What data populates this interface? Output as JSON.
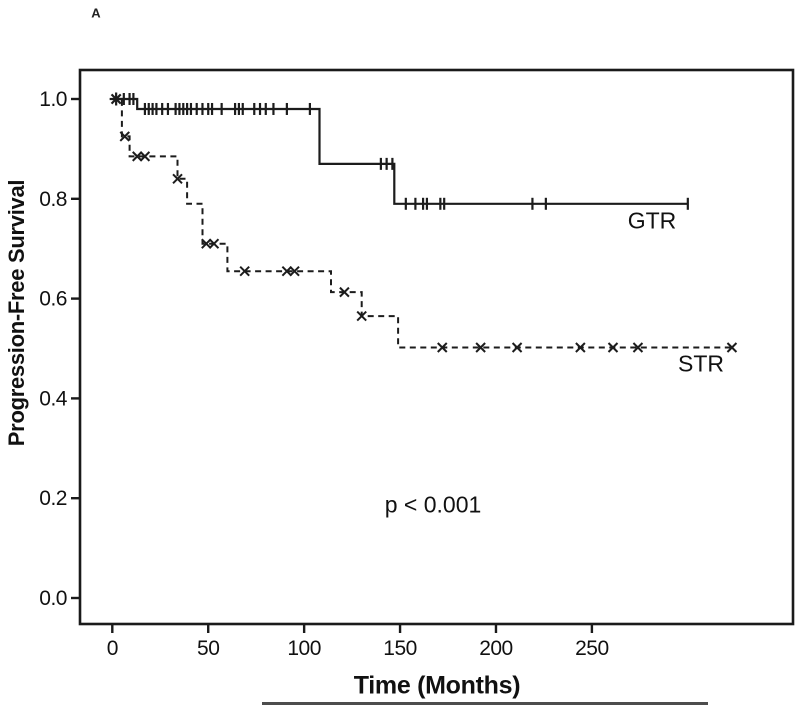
{
  "figure_label": "A",
  "annotations": {
    "p_value": "p < 0.001"
  },
  "chart_data": {
    "type": "line",
    "subtype": "kaplan-meier-step",
    "title": "",
    "xlabel": "Time (Months)",
    "ylabel": "Progression-Free Survival",
    "xlim": [
      0,
      355
    ],
    "ylim": [
      -0.05,
      1.06
    ],
    "x_ticks": [
      0,
      50,
      100,
      150,
      200,
      250
    ],
    "y_ticks": [
      "1.0",
      "0.8",
      "0.6",
      "0.4",
      "0.2",
      "0.0"
    ],
    "y_tick_values": [
      1.0,
      0.8,
      0.6,
      0.4,
      0.2,
      0.0
    ],
    "grid": "off",
    "legend_position": "inline-labels",
    "curve_color": "#1c1c1c",
    "series": [
      {
        "name": "GTR",
        "line_style": "solid",
        "censor_marker": "plus",
        "steps": [
          [
            0,
            1.0
          ],
          [
            13,
            1.0
          ],
          [
            13,
            0.98
          ],
          [
            108,
            0.98
          ],
          [
            108,
            0.87
          ],
          [
            147,
            0.87
          ],
          [
            147,
            0.79
          ],
          [
            300,
            0.79
          ]
        ],
        "censors": [
          [
            6,
            1.0
          ],
          [
            9,
            1.0
          ],
          [
            11,
            1.0
          ],
          [
            17,
            0.98
          ],
          [
            19,
            0.98
          ],
          [
            21,
            0.98
          ],
          [
            23,
            0.98
          ],
          [
            26,
            0.98
          ],
          [
            29,
            0.98
          ],
          [
            33,
            0.98
          ],
          [
            35,
            0.98
          ],
          [
            37,
            0.98
          ],
          [
            39,
            0.98
          ],
          [
            41,
            0.98
          ],
          [
            44,
            0.98
          ],
          [
            47,
            0.98
          ],
          [
            50,
            0.98
          ],
          [
            52,
            0.98
          ],
          [
            57,
            0.98
          ],
          [
            64,
            0.98
          ],
          [
            66,
            0.98
          ],
          [
            68,
            0.98
          ],
          [
            74,
            0.98
          ],
          [
            77,
            0.98
          ],
          [
            80,
            0.98
          ],
          [
            84,
            0.98
          ],
          [
            91,
            0.98
          ],
          [
            103,
            0.98
          ],
          [
            140,
            0.87
          ],
          [
            143,
            0.87
          ],
          [
            146,
            0.87
          ],
          [
            153,
            0.79
          ],
          [
            158,
            0.79
          ],
          [
            162,
            0.79
          ],
          [
            164,
            0.79
          ],
          [
            171,
            0.79
          ],
          [
            173,
            0.79
          ],
          [
            219,
            0.79
          ],
          [
            226,
            0.79
          ],
          [
            300,
            0.79
          ]
        ],
        "label_anchor": {
          "t": 281,
          "s": 0.755
        }
      },
      {
        "name": "STR",
        "line_style": "dashed",
        "censor_marker": "x",
        "steps": [
          [
            0,
            1.0
          ],
          [
            5,
            1.0
          ],
          [
            5,
            0.925
          ],
          [
            9,
            0.925
          ],
          [
            9,
            0.885
          ],
          [
            34,
            0.885
          ],
          [
            34,
            0.84
          ],
          [
            39,
            0.84
          ],
          [
            39,
            0.79
          ],
          [
            47,
            0.79
          ],
          [
            47,
            0.71
          ],
          [
            60,
            0.71
          ],
          [
            60,
            0.655
          ],
          [
            114,
            0.655
          ],
          [
            114,
            0.613
          ],
          [
            130,
            0.613
          ],
          [
            130,
            0.565
          ],
          [
            149,
            0.565
          ],
          [
            149,
            0.502
          ],
          [
            323,
            0.502
          ]
        ],
        "censors": [
          [
            6.5,
            0.925
          ],
          [
            13,
            0.885
          ],
          [
            17,
            0.885
          ],
          [
            34,
            0.84
          ],
          [
            49,
            0.71
          ],
          [
            53,
            0.71
          ],
          [
            69,
            0.655
          ],
          [
            91,
            0.655
          ],
          [
            95,
            0.655
          ],
          [
            121,
            0.613
          ],
          [
            130,
            0.565
          ],
          [
            172,
            0.502
          ],
          [
            192,
            0.502
          ],
          [
            211,
            0.502
          ],
          [
            244,
            0.502
          ],
          [
            261,
            0.502
          ],
          [
            274,
            0.502
          ],
          [
            323,
            0.502
          ]
        ],
        "label_anchor": {
          "t": 307,
          "s": 0.468
        }
      }
    ],
    "start_cluster": {
      "t": 2,
      "s": 1.0
    },
    "annotation": {
      "text": "p < 0.001",
      "t": 167,
      "s": 0.188
    }
  }
}
